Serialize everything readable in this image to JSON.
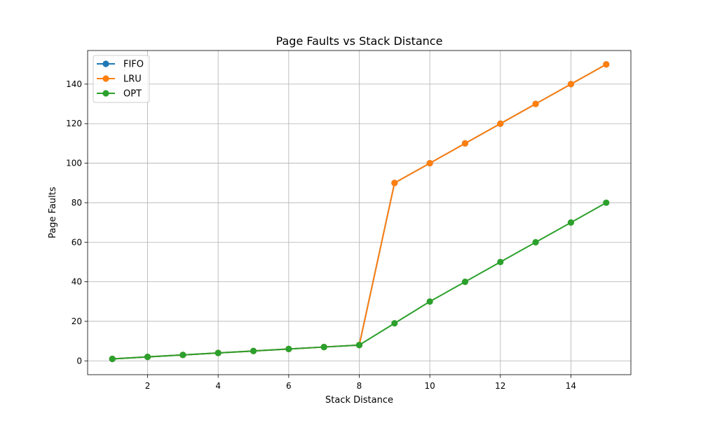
{
  "chart_data": {
    "type": "line",
    "title": "Page Faults vs Stack Distance",
    "xlabel": "Stack Distance",
    "ylabel": "Page Faults",
    "x": [
      1,
      2,
      3,
      4,
      5,
      6,
      7,
      8,
      9,
      10,
      11,
      12,
      13,
      14,
      15
    ],
    "xlim": [
      0.3,
      15.7
    ],
    "ylim": [
      -7,
      157
    ],
    "xticks": [
      2,
      4,
      6,
      8,
      10,
      12,
      14
    ],
    "yticks": [
      0,
      20,
      40,
      60,
      80,
      100,
      120,
      140
    ],
    "grid": true,
    "legend_position": "top-left",
    "series": [
      {
        "name": "FIFO",
        "color": "#1f77b4",
        "marker": "circle",
        "values": [
          1,
          2,
          3,
          4,
          5,
          6,
          7,
          8,
          90,
          100,
          110,
          120,
          130,
          140,
          150
        ]
      },
      {
        "name": "LRU",
        "color": "#ff7f0e",
        "marker": "circle",
        "values": [
          1,
          2,
          3,
          4,
          5,
          6,
          7,
          8,
          90,
          100,
          110,
          120,
          130,
          140,
          150
        ]
      },
      {
        "name": "OPT",
        "color": "#2ca02c",
        "marker": "circle",
        "values": [
          1,
          2,
          3,
          4,
          5,
          6,
          7,
          8,
          19,
          30,
          40,
          50,
          60,
          70,
          80
        ]
      }
    ]
  }
}
